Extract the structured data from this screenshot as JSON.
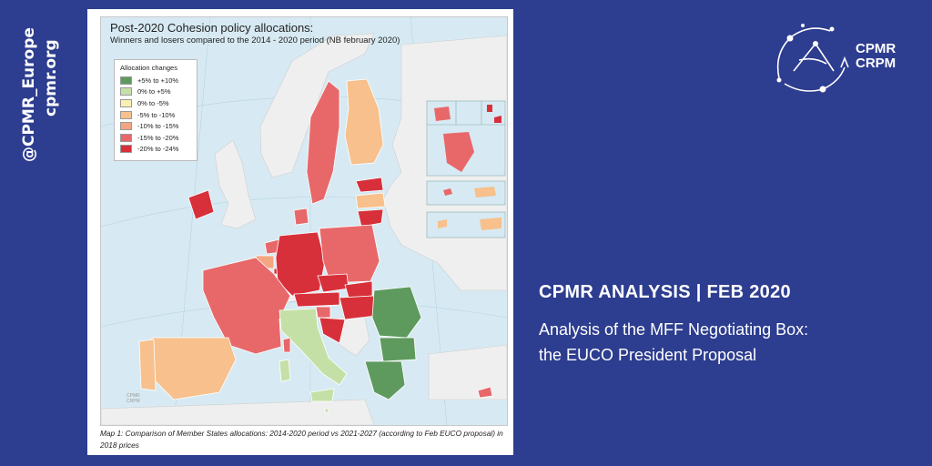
{
  "social": {
    "handle": "@CPMR_Europe",
    "website": "cpmr.org"
  },
  "brand": {
    "line1": "CPMR",
    "line2": "CRPM",
    "logo_icon": "cpmr-compass-logo"
  },
  "headline": "CPMR ANALYSIS | FEB 2020",
  "subtitle": {
    "line1": "Analysis of the MFF Negotiating Box:",
    "line2": "the EUCO President Proposal"
  },
  "map": {
    "title": "Post-2020 Cohesion policy allocations:",
    "subtitle": "Winners and losers compared to the 2014 - 2020 period (NB february 2020)",
    "legend_title": "Allocation changes",
    "watermark_line1": "CPMR",
    "watermark_line2": "CRPM",
    "legend": [
      {
        "label": "+5% to +10%",
        "color": "#5e9a5e"
      },
      {
        "label": "0% to +5%",
        "color": "#c5e0a7"
      },
      {
        "label": "0% to -5%",
        "color": "#fbf0b4"
      },
      {
        "label": "-5% to -10%",
        "color": "#f7c08c"
      },
      {
        "label": "-10% to -15%",
        "color": "#f4a582"
      },
      {
        "label": "-15% to -20%",
        "color": "#e8686a"
      },
      {
        "label": "-20% to -24%",
        "color": "#d7303a"
      }
    ],
    "caption": "Map 1: Comparison of Member States allocations: 2014-2020 period vs 2021-2027 (according to Feb EUCO proposal) in 2018 prices",
    "colors": {
      "sea": "#d7eaf3",
      "non_eu": "#efefef",
      "border": "#ffffff"
    }
  }
}
